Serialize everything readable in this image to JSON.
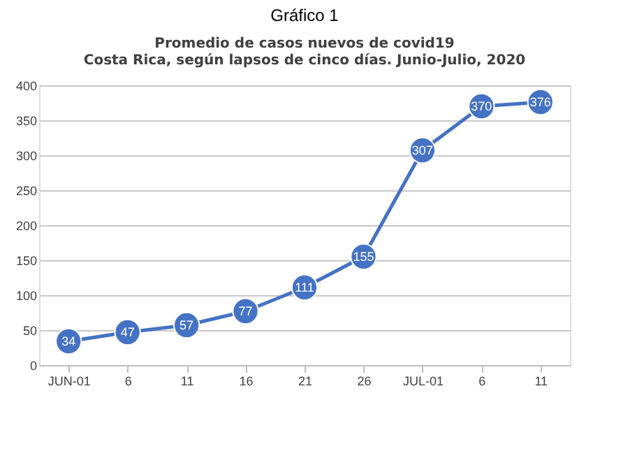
{
  "chart_data": {
    "type": "line",
    "title": "Gráfico 1",
    "subtitle": "Promedio de casos nuevos de covid19\nCosta Rica, según lapsos de cinco días. Junio-Julio, 2020",
    "categories": [
      "JUN-01",
      "6",
      "11",
      "16",
      "21",
      "26",
      "JUL-01",
      "6",
      "11"
    ],
    "series": [
      {
        "color": "#4472c4",
        "values": [
          34,
          47,
          57,
          77,
          111,
          155,
          307,
          370,
          376
        ]
      }
    ],
    "ylim": [
      0,
      400
    ],
    "yticks": [
      0,
      50,
      100,
      150,
      200,
      250,
      300,
      350,
      400
    ],
    "grid": "y",
    "marker": "circle",
    "line_style": "solid",
    "data_labels": true
  }
}
